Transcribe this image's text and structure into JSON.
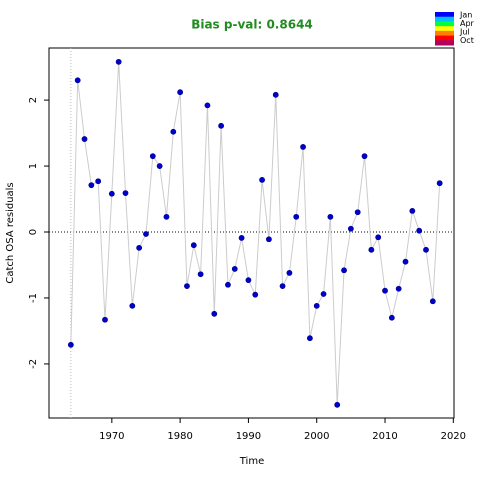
{
  "chart_data": {
    "type": "scatter",
    "title": "Bias p-val: 0.8644",
    "title_color": "#228b22",
    "xlabel": "Time",
    "ylabel": "Catch OSA residuals",
    "x": [
      1964,
      1965,
      1966,
      1967,
      1968,
      1969,
      1970,
      1971,
      1972,
      1973,
      1974,
      1975,
      1976,
      1977,
      1978,
      1979,
      1980,
      1981,
      1982,
      1983,
      1984,
      1985,
      1986,
      1987,
      1988,
      1989,
      1990,
      1991,
      1992,
      1993,
      1994,
      1995,
      1996,
      1997,
      1998,
      1999,
      2000,
      2001,
      2002,
      2003,
      2004,
      2005,
      2006,
      2007,
      2008,
      2009,
      2010,
      2011,
      2012,
      2013,
      2014,
      2015,
      2016,
      2017,
      2018
    ],
    "values": [
      -1.71,
      2.3,
      1.41,
      0.71,
      0.77,
      -1.33,
      0.58,
      2.58,
      0.59,
      -1.12,
      -0.24,
      -0.03,
      1.15,
      1.0,
      0.23,
      1.52,
      2.12,
      -0.82,
      -0.2,
      -0.64,
      1.92,
      -1.24,
      1.61,
      -0.8,
      -0.56,
      -0.09,
      -0.73,
      -0.95,
      0.79,
      -0.11,
      2.08,
      -0.82,
      -0.62,
      0.23,
      1.29,
      -1.61,
      -1.12,
      -0.94,
      0.23,
      -2.62,
      -0.58,
      0.05,
      0.3,
      1.15,
      -0.27,
      -0.08,
      -0.89,
      -1.3,
      -0.86,
      -0.45,
      0.32,
      0.02,
      -0.27,
      -1.05,
      0.74
    ],
    "color": "#0000cd",
    "line_color": "#cccccc",
    "xlim": [
      1960.8,
      2020.1
    ],
    "ylim": [
      -2.82,
      2.79
    ],
    "xticks": [
      1970,
      1980,
      1990,
      2000,
      2010,
      2020
    ],
    "yticks": [
      -2,
      -1,
      0,
      1,
      2
    ],
    "hline": 0,
    "vline": 1964,
    "legend": {
      "labels": [
        "Jan",
        "Apr",
        "Jul",
        "Oct"
      ],
      "colors": [
        "#0000ff",
        "#00bfff",
        "#00ff40",
        "#ffff00",
        "#ff8000",
        "#ff0000",
        "#b00060"
      ]
    }
  }
}
